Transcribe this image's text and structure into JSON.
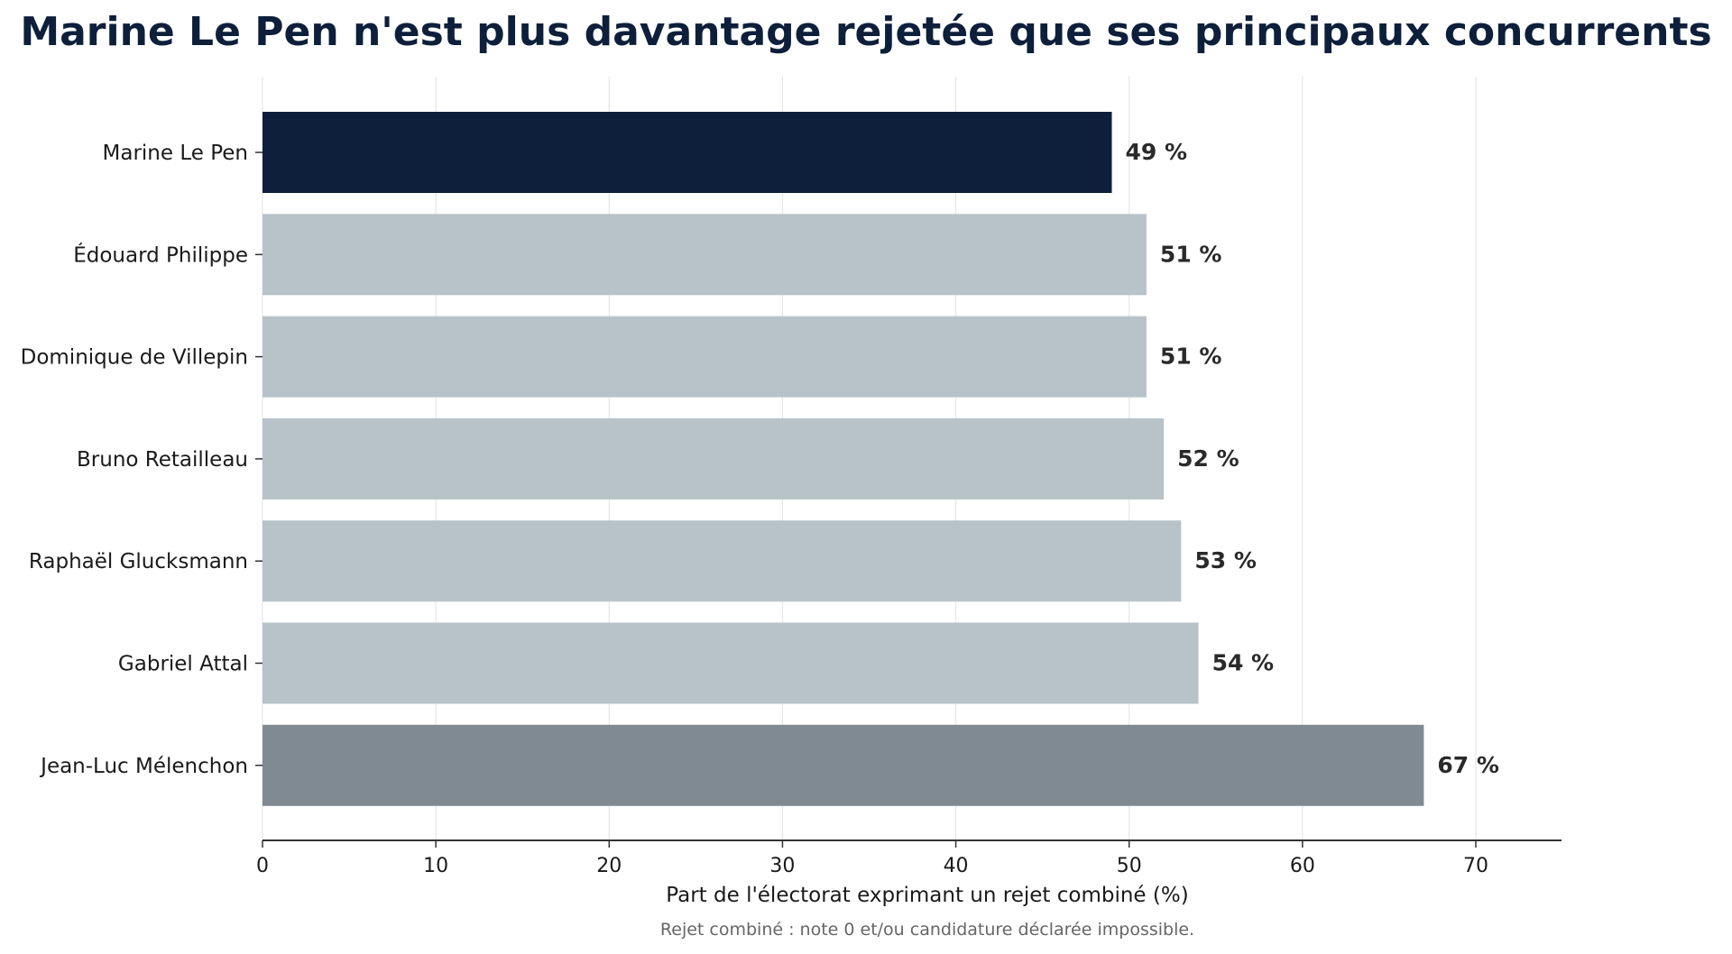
{
  "chart_data": {
    "type": "bar",
    "orientation": "horizontal",
    "title": "Marine Le Pen n'est plus davantage rejetée que ses principaux concurrents",
    "xlabel": "Part de l'électorat exprimant un rejet combiné (%)",
    "ylabel": "",
    "footnote": "Rejet combiné : note 0 et/ou candidature déclarée impossible.",
    "xlim": [
      0,
      75
    ],
    "xticks": [
      0,
      10,
      20,
      30,
      40,
      50,
      60,
      70
    ],
    "grid": "vertical",
    "categories": [
      "Marine Le Pen",
      "Édouard Philippe",
      "Dominique de Villepin",
      "Bruno Retailleau",
      "Raphaël Glucksmann",
      "Gabriel Attal",
      "Jean-Luc Mélenchon"
    ],
    "values": [
      49,
      51,
      51,
      52,
      53,
      54,
      67
    ],
    "value_labels": [
      "49 %",
      "51 %",
      "51 %",
      "52 %",
      "53 %",
      "54 %",
      "67 %"
    ],
    "bar_colors": [
      "#0d1f3a",
      "#b7c3c9",
      "#b7c3c9",
      "#b7c3c9",
      "#b7c3c9",
      "#b7c3c9",
      "#7f8a92"
    ]
  }
}
